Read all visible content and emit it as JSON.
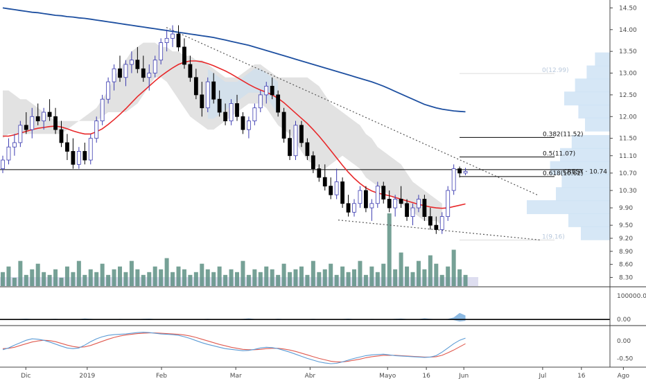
{
  "chart_data": {
    "type": "line",
    "symbol": "CRESY",
    "last_price": "10.74",
    "price_axis": {
      "ticks": [
        "14.50",
        "14.00",
        "13.50",
        "13.00",
        "12.50",
        "12.00",
        "11.50",
        "11.10",
        "10.70",
        "10.30",
        "9.90",
        "9.50",
        "9.20",
        "8.90",
        "8.60",
        "8.30"
      ],
      "ylim": [
        8.1,
        14.65
      ]
    },
    "time_axis": {
      "ticks": [
        "Dic",
        "2019",
        "Feb",
        "Mar",
        "Abr",
        "Mayo",
        "16",
        "Jun",
        "Jul",
        "16",
        "Ago"
      ],
      "tick_x": [
        0.04,
        0.135,
        0.25,
        0.365,
        0.48,
        0.6,
        0.66,
        0.718,
        0.84,
        0.9,
        0.965
      ]
    },
    "fib_levels": [
      {
        "label": "0(12.99)",
        "value": 12.99,
        "faded": true
      },
      {
        "label": "0.382(11.52)",
        "value": 11.52
      },
      {
        "label": "0.5(11.07)",
        "value": 11.07
      },
      {
        "label": "0.618(10.62)",
        "value": 10.62
      },
      {
        "label": "1(9.16)",
        "value": 9.16,
        "faded": true
      }
    ],
    "horizontal_support": 10.78,
    "candles": [
      [
        10.8,
        11.1,
        10.7,
        11.0
      ],
      [
        11.0,
        11.5,
        10.9,
        11.3
      ],
      [
        11.3,
        11.6,
        11.1,
        11.4
      ],
      [
        11.4,
        11.9,
        11.3,
        11.8
      ],
      [
        11.8,
        12.1,
        11.6,
        11.7
      ],
      [
        11.7,
        12.2,
        11.5,
        12.0
      ],
      [
        12.0,
        12.3,
        11.8,
        11.9
      ],
      [
        11.9,
        12.2,
        11.7,
        12.1
      ],
      [
        12.1,
        12.4,
        11.9,
        12.0
      ],
      [
        12.0,
        12.2,
        11.6,
        11.7
      ],
      [
        11.7,
        11.9,
        11.3,
        11.4
      ],
      [
        11.4,
        11.6,
        11.0,
        11.2
      ],
      [
        11.2,
        11.5,
        10.8,
        10.9
      ],
      [
        10.9,
        11.3,
        10.8,
        11.2
      ],
      [
        11.2,
        11.4,
        10.9,
        11.0
      ],
      [
        11.0,
        11.6,
        10.9,
        11.5
      ],
      [
        11.5,
        12.0,
        11.4,
        11.9
      ],
      [
        11.9,
        12.5,
        11.8,
        12.4
      ],
      [
        12.4,
        12.9,
        12.3,
        12.8
      ],
      [
        12.8,
        13.2,
        12.6,
        13.1
      ],
      [
        13.1,
        13.4,
        12.8,
        12.9
      ],
      [
        12.9,
        13.3,
        12.7,
        13.2
      ],
      [
        13.2,
        13.5,
        13.0,
        13.3
      ],
      [
        13.3,
        13.6,
        13.0,
        13.1
      ],
      [
        13.1,
        13.4,
        12.8,
        12.9
      ],
      [
        12.9,
        13.2,
        12.6,
        13.0
      ],
      [
        13.0,
        13.4,
        12.9,
        13.3
      ],
      [
        13.3,
        13.8,
        13.2,
        13.7
      ],
      [
        13.7,
        14.0,
        13.5,
        13.8
      ],
      [
        13.8,
        14.1,
        13.6,
        13.9
      ],
      [
        13.9,
        14.1,
        13.5,
        13.6
      ],
      [
        13.6,
        13.8,
        13.1,
        13.2
      ],
      [
        13.2,
        13.4,
        12.8,
        12.9
      ],
      [
        12.9,
        13.1,
        12.4,
        12.5
      ],
      [
        12.5,
        12.8,
        12.0,
        12.2
      ],
      [
        12.2,
        12.9,
        12.1,
        12.8
      ],
      [
        12.8,
        13.0,
        12.3,
        12.4
      ],
      [
        12.4,
        12.6,
        12.0,
        12.1
      ],
      [
        12.1,
        12.3,
        11.8,
        11.9
      ],
      [
        11.9,
        12.4,
        11.8,
        12.3
      ],
      [
        12.3,
        12.5,
        11.9,
        12.0
      ],
      [
        12.0,
        12.1,
        11.6,
        11.7
      ],
      [
        11.7,
        12.0,
        11.5,
        11.9
      ],
      [
        11.9,
        12.3,
        11.8,
        12.2
      ],
      [
        12.2,
        12.6,
        12.1,
        12.5
      ],
      [
        12.5,
        12.8,
        12.3,
        12.7
      ],
      [
        12.7,
        12.9,
        12.4,
        12.5
      ],
      [
        12.5,
        12.6,
        12.0,
        12.1
      ],
      [
        12.1,
        12.2,
        11.4,
        11.5
      ],
      [
        11.5,
        11.7,
        11.0,
        11.1
      ],
      [
        11.1,
        11.9,
        11.0,
        11.8
      ],
      [
        11.8,
        11.9,
        11.3,
        11.4
      ],
      [
        11.4,
        11.5,
        11.0,
        11.1
      ],
      [
        11.1,
        11.2,
        10.7,
        10.8
      ],
      [
        10.8,
        10.9,
        10.5,
        10.6
      ],
      [
        10.6,
        10.9,
        10.3,
        10.4
      ],
      [
        10.4,
        10.6,
        10.1,
        10.2
      ],
      [
        10.2,
        10.8,
        10.1,
        10.5
      ],
      [
        10.5,
        10.6,
        9.9,
        10.0
      ],
      [
        10.0,
        10.2,
        9.7,
        9.8
      ],
      [
        9.8,
        10.1,
        9.7,
        10.0
      ],
      [
        10.0,
        10.4,
        9.9,
        10.3
      ],
      [
        10.3,
        10.4,
        9.8,
        9.9
      ],
      [
        9.9,
        10.1,
        9.6,
        10.0
      ],
      [
        10.0,
        10.5,
        9.9,
        10.4
      ],
      [
        10.4,
        10.5,
        10.0,
        10.1
      ],
      [
        10.1,
        10.3,
        9.8,
        9.9
      ],
      [
        9.9,
        10.2,
        9.7,
        10.1
      ],
      [
        10.1,
        10.4,
        9.9,
        10.0
      ],
      [
        10.0,
        10.1,
        9.6,
        9.7
      ],
      [
        9.7,
        10.0,
        9.5,
        9.9
      ],
      [
        9.9,
        10.2,
        9.8,
        10.1
      ],
      [
        10.1,
        10.2,
        9.6,
        9.7
      ],
      [
        9.7,
        9.9,
        9.4,
        9.5
      ],
      [
        9.5,
        9.7,
        9.3,
        9.4
      ],
      [
        9.4,
        9.8,
        9.3,
        9.7
      ],
      [
        9.7,
        10.4,
        9.6,
        10.3
      ],
      [
        10.3,
        10.9,
        10.2,
        10.8
      ],
      [
        10.8,
        10.85,
        10.6,
        10.7
      ],
      [
        10.7,
        10.82,
        10.65,
        10.74
      ]
    ],
    "volume": [
      5,
      7,
      3,
      9,
      4,
      6,
      8,
      5,
      4,
      6,
      3,
      7,
      5,
      9,
      4,
      6,
      5,
      8,
      4,
      6,
      7,
      5,
      9,
      6,
      4,
      5,
      7,
      6,
      10,
      5,
      7,
      6,
      4,
      5,
      8,
      6,
      5,
      7,
      4,
      6,
      5,
      9,
      4,
      6,
      5,
      7,
      6,
      4,
      8,
      5,
      6,
      7,
      4,
      9,
      5,
      6,
      8,
      4,
      7,
      5,
      6,
      9,
      4,
      7,
      5,
      8,
      26,
      6,
      12,
      7,
      5,
      9,
      6,
      11,
      8,
      4,
      7,
      13,
      6,
      4
    ],
    "ma_red": [
      11.55,
      11.55,
      11.58,
      11.62,
      11.66,
      11.7,
      11.73,
      11.75,
      11.77,
      11.78,
      11.76,
      11.72,
      11.67,
      11.63,
      11.6,
      11.6,
      11.65,
      11.72,
      11.82,
      11.93,
      12.05,
      12.18,
      12.32,
      12.46,
      12.58,
      12.7,
      12.82,
      12.93,
      13.03,
      13.12,
      13.2,
      13.25,
      13.28,
      13.28,
      13.26,
      13.22,
      13.17,
      13.11,
      13.05,
      12.98,
      12.9,
      12.82,
      12.74,
      12.67,
      12.61,
      12.56,
      12.5,
      12.42,
      12.32,
      12.2,
      12.08,
      11.96,
      11.84,
      11.7,
      11.55,
      11.39,
      11.22,
      11.05,
      10.88,
      10.72,
      10.58,
      10.46,
      10.36,
      10.29,
      10.24,
      10.21,
      10.18,
      10.14,
      10.1,
      10.06,
      10.02,
      9.98,
      9.95,
      9.92,
      9.9,
      9.89,
      9.9,
      9.93,
      9.96,
      9.99
    ],
    "ma_blue": [
      14.5,
      14.48,
      14.46,
      14.44,
      14.42,
      14.4,
      14.39,
      14.37,
      14.35,
      14.33,
      14.32,
      14.3,
      14.29,
      14.27,
      14.26,
      14.24,
      14.22,
      14.2,
      14.18,
      14.16,
      14.14,
      14.12,
      14.1,
      14.08,
      14.06,
      14.04,
      14.02,
      14.0,
      13.98,
      13.96,
      13.94,
      13.92,
      13.9,
      13.88,
      13.86,
      13.84,
      13.82,
      13.79,
      13.76,
      13.73,
      13.7,
      13.67,
      13.64,
      13.6,
      13.56,
      13.52,
      13.48,
      13.44,
      13.4,
      13.36,
      13.32,
      13.28,
      13.24,
      13.2,
      13.16,
      13.12,
      13.08,
      13.04,
      13.0,
      12.96,
      12.92,
      12.88,
      12.84,
      12.8,
      12.75,
      12.7,
      12.64,
      12.58,
      12.52,
      12.46,
      12.4,
      12.34,
      12.28,
      12.24,
      12.2,
      12.17,
      12.15,
      12.13,
      12.12,
      12.11
    ],
    "cloud_upper": [
      12.6,
      12.6,
      12.5,
      12.4,
      12.4,
      12.3,
      12.2,
      12.1,
      12.0,
      11.9,
      11.9,
      11.9,
      11.9,
      11.9,
      12.0,
      12.1,
      12.2,
      12.4,
      12.6,
      12.9,
      13.1,
      13.3,
      13.5,
      13.6,
      13.7,
      13.7,
      13.7,
      13.6,
      13.6,
      13.5,
      13.5,
      13.4,
      13.4,
      13.3,
      13.3,
      13.2,
      13.1,
      13.0,
      12.9,
      12.9,
      12.9,
      13.0,
      13.1,
      13.2,
      13.2,
      13.1,
      13.0,
      12.9,
      12.9,
      12.9,
      12.9,
      12.9,
      12.9,
      12.8,
      12.7,
      12.5,
      12.3,
      12.2,
      12.1,
      12.0,
      11.9,
      11.8,
      11.6,
      11.5,
      11.3,
      11.2,
      11.1,
      11.0,
      10.9,
      10.7,
      10.5,
      10.4,
      10.3,
      10.2,
      10.1,
      10.0
    ],
    "cloud_lower": [
      11.5,
      11.6,
      11.6,
      11.6,
      11.6,
      11.6,
      11.6,
      11.6,
      11.6,
      11.6,
      11.6,
      11.7,
      11.8,
      11.9,
      11.9,
      11.9,
      11.9,
      12.0,
      12.1,
      12.1,
      12.1,
      12.1,
      12.2,
      12.3,
      12.5,
      12.7,
      12.9,
      12.9,
      12.8,
      12.6,
      12.4,
      12.2,
      12.0,
      11.9,
      11.8,
      11.7,
      11.7,
      11.8,
      11.9,
      12.0,
      12.1,
      12.2,
      12.3,
      12.3,
      12.3,
      12.2,
      12.0,
      11.8,
      11.7,
      11.6,
      11.4,
      11.2,
      11.0,
      10.9,
      10.8,
      10.8,
      10.9,
      11.0,
      11.1,
      11.0,
      10.9,
      10.8,
      10.6,
      10.5,
      10.4,
      10.3,
      10.2,
      10.1,
      10.0,
      9.9,
      9.8,
      9.7,
      9.6,
      9.6,
      9.6,
      9.5
    ],
    "cloud_offset": 18,
    "volume_profile": [
      {
        "price": 13.3,
        "width": 0.18
      },
      {
        "price": 13.0,
        "width": 0.28
      },
      {
        "price": 12.7,
        "width": 0.42
      },
      {
        "price": 12.4,
        "width": 0.55
      },
      {
        "price": 12.1,
        "width": 0.38
      },
      {
        "price": 11.8,
        "width": 0.3
      },
      {
        "price": 11.4,
        "width": 0.46
      },
      {
        "price": 11.1,
        "width": 0.6
      },
      {
        "price": 10.8,
        "width": 0.72
      },
      {
        "price": 10.5,
        "width": 0.58
      },
      {
        "price": 10.2,
        "width": 0.65
      },
      {
        "price": 9.9,
        "width": 1.0
      },
      {
        "price": 9.6,
        "width": 0.5
      },
      {
        "price": 9.3,
        "width": 0.35
      }
    ],
    "osc1": {
      "ticks": [
        "100000.00",
        "0.00"
      ],
      "range": [
        -20000,
        130000
      ],
      "values": [
        3,
        5,
        2,
        8,
        12,
        6,
        4,
        3,
        7,
        10,
        5,
        2,
        3,
        6,
        14,
        9,
        4,
        3,
        2,
        5,
        8,
        6,
        3,
        4,
        9,
        12,
        6,
        3,
        2,
        4,
        5,
        7,
        3,
        2,
        6,
        9,
        5,
        3,
        4,
        2,
        5,
        8,
        16,
        7,
        4,
        3,
        5,
        11,
        6,
        3,
        2,
        4,
        6,
        9,
        5,
        3,
        2,
        4,
        7,
        12,
        5,
        3,
        4,
        8,
        6,
        3,
        5,
        9,
        13,
        7,
        4,
        6,
        18,
        10,
        5,
        3,
        8,
        30,
        98,
        60
      ]
    },
    "osc2": {
      "ticks": [
        "0.00",
        "-0.50"
      ],
      "range": [
        -0.75,
        0.4
      ],
      "macd": [
        -0.25,
        -0.2,
        -0.12,
        -0.05,
        0.02,
        0.06,
        0.05,
        0.02,
        -0.03,
        -0.09,
        -0.15,
        -0.2,
        -0.22,
        -0.2,
        -0.12,
        -0.02,
        0.06,
        0.12,
        0.16,
        0.18,
        0.19,
        0.2,
        0.22,
        0.24,
        0.25,
        0.24,
        0.22,
        0.2,
        0.19,
        0.18,
        0.16,
        0.12,
        0.07,
        0.01,
        -0.05,
        -0.1,
        -0.14,
        -0.18,
        -0.22,
        -0.24,
        -0.26,
        -0.28,
        -0.27,
        -0.24,
        -0.2,
        -0.18,
        -0.19,
        -0.22,
        -0.27,
        -0.32,
        -0.38,
        -0.44,
        -0.5,
        -0.55,
        -0.6,
        -0.63,
        -0.65,
        -0.64,
        -0.6,
        -0.55,
        -0.5,
        -0.46,
        -0.42,
        -0.4,
        -0.39,
        -0.38,
        -0.4,
        -0.42,
        -0.43,
        -0.44,
        -0.45,
        -0.46,
        -0.47,
        -0.46,
        -0.42,
        -0.32,
        -0.2,
        -0.08,
        0.02,
        0.08
      ],
      "signal": [
        -0.22,
        -0.21,
        -0.18,
        -0.13,
        -0.08,
        -0.03,
        0.0,
        0.02,
        0.01,
        -0.02,
        -0.07,
        -0.12,
        -0.16,
        -0.18,
        -0.17,
        -0.13,
        -0.07,
        -0.01,
        0.05,
        0.1,
        0.14,
        0.17,
        0.19,
        0.21,
        0.22,
        0.23,
        0.23,
        0.22,
        0.21,
        0.2,
        0.19,
        0.17,
        0.14,
        0.1,
        0.05,
        0.0,
        -0.05,
        -0.1,
        -0.14,
        -0.18,
        -0.21,
        -0.24,
        -0.25,
        -0.25,
        -0.24,
        -0.22,
        -0.21,
        -0.21,
        -0.23,
        -0.26,
        -0.3,
        -0.35,
        -0.4,
        -0.45,
        -0.5,
        -0.54,
        -0.58,
        -0.6,
        -0.6,
        -0.58,
        -0.55,
        -0.52,
        -0.48,
        -0.45,
        -0.43,
        -0.41,
        -0.41,
        -0.41,
        -0.42,
        -0.43,
        -0.44,
        -0.45,
        -0.46,
        -0.46,
        -0.45,
        -0.41,
        -0.34,
        -0.26,
        -0.17,
        -0.08
      ]
    },
    "colors": {
      "up": "#ffffff",
      "up_border": "#3b3bb0",
      "down": "#000000",
      "ma_red": "#e8282a",
      "ma_blue": "#1d4fa0",
      "cloud": "#d8d8d8",
      "cloud_blue": "#cfe0ee",
      "volume": "#5e9084",
      "volume_profile": "#cfe3f5",
      "osc_fill": "#5b9bd5",
      "macd": "#5b9bd5",
      "signal": "#e05a4f",
      "axis_text": "#4a4a4a",
      "grid_line": "#e8e8e8"
    }
  }
}
